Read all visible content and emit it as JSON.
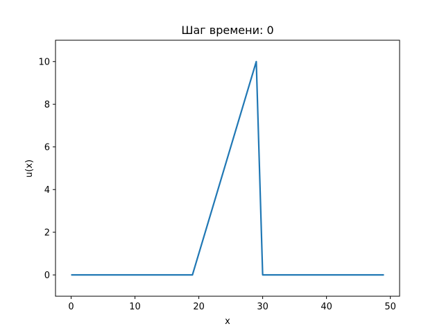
{
  "chart_data": {
    "type": "line",
    "title": "Шаг времени: 0",
    "xlabel": "x",
    "ylabel": "u(x)",
    "xlim": [
      -2.45,
      51.45
    ],
    "ylim": [
      -1.0,
      11.0
    ],
    "xticks": [
      0,
      10,
      20,
      30,
      40,
      50
    ],
    "yticks": [
      0,
      2,
      4,
      6,
      8,
      10
    ],
    "grid": false,
    "series": [
      {
        "color": "#1f77b4",
        "x": [
          0,
          19,
          29,
          30,
          49
        ],
        "y": [
          0,
          0,
          10,
          0,
          0
        ]
      }
    ]
  }
}
